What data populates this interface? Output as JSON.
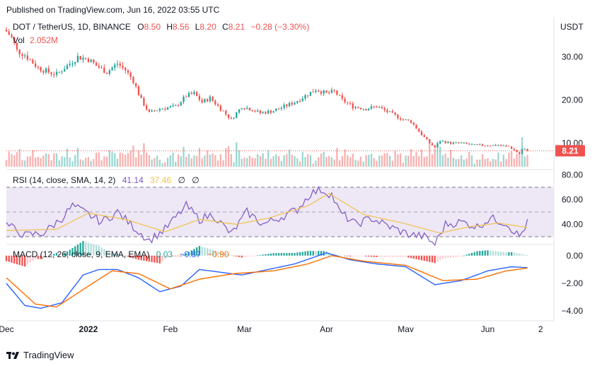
{
  "published": "Published on TradingView.com, Jun 16, 2022 03:55 UTC",
  "footer_brand": "TradingView",
  "legend": {
    "symbol": "DOT / TetherUS, 1D, BINANCE",
    "o_label": "O",
    "o": "8.50",
    "h_label": "H",
    "h": "8.56",
    "l_label": "L",
    "l": "8.20",
    "c_label": "C",
    "c": "8.21",
    "change": "−0.28 (−3.30%)",
    "vol_label": "Vol",
    "vol": "2.052M"
  },
  "rsi_legend": {
    "label": "RSI (14, close, SMA, 14, 2)",
    "rsi": "41.14",
    "sma": "37.46",
    "x1": "∅",
    "x2": "∅"
  },
  "macd_legend": {
    "label": "MACD (12, 26, close, 9, EMA, EMA)",
    "hist": "0.03",
    "macd": "−0.87",
    "signal": "−0.90"
  },
  "currency": "USDT",
  "last_price_label": "8.21",
  "colors": {
    "up": "#26a69a",
    "down": "#ef5350",
    "rsi": "#7e57c2",
    "rsi_sma": "#f0c24a",
    "macd": "#2962ff",
    "signal": "#ff6d00",
    "rsi_band": "#ede7f6"
  },
  "chart_data": [
    {
      "type": "candlestick",
      "title": "DOT / TetherUS, 1D, BINANCE",
      "ylabel": "USDT",
      "y_ticks": [
        "30.00",
        "20.00",
        "10.00"
      ],
      "ylim": [
        4.5,
        38
      ],
      "x_ticks": [
        "Dec",
        "2022",
        "Feb",
        "Mar",
        "Apr",
        "May",
        "Jun",
        "2"
      ],
      "x_tick_dates": [
        "2021-12-01",
        "2022-01-01",
        "2022-02-01",
        "2022-03-01",
        "2022-04-01",
        "2022-05-01",
        "2022-06-01",
        "2022-06-21"
      ],
      "x_start": "2021-12-01",
      "x_end": "2022-06-22",
      "close_anchors": [
        [
          "2021-12-01",
          36.0
        ],
        [
          "2021-12-03",
          34.5
        ],
        [
          "2021-12-05",
          31.5
        ],
        [
          "2021-12-08",
          30.5
        ],
        [
          "2021-12-13",
          27.5
        ],
        [
          "2021-12-17",
          26.5
        ],
        [
          "2021-12-20",
          26.0
        ],
        [
          "2021-12-24",
          28.0
        ],
        [
          "2021-12-28",
          30.0
        ],
        [
          "2022-01-01",
          29.5
        ],
        [
          "2022-01-04",
          28.0
        ],
        [
          "2022-01-08",
          26.5
        ],
        [
          "2022-01-12",
          28.5
        ],
        [
          "2022-01-15",
          27.0
        ],
        [
          "2022-01-18",
          24.5
        ],
        [
          "2022-01-21",
          20.0
        ],
        [
          "2022-01-24",
          17.0
        ],
        [
          "2022-01-28",
          18.0
        ],
        [
          "2022-02-03",
          18.5
        ],
        [
          "2022-02-07",
          21.0
        ],
        [
          "2022-02-10",
          21.5
        ],
        [
          "2022-02-13",
          19.5
        ],
        [
          "2022-02-16",
          20.5
        ],
        [
          "2022-02-20",
          18.0
        ],
        [
          "2022-02-24",
          15.5
        ],
        [
          "2022-02-28",
          18.5
        ],
        [
          "2022-03-03",
          18.0
        ],
        [
          "2022-03-07",
          17.0
        ],
        [
          "2022-03-12",
          17.5
        ],
        [
          "2022-03-16",
          18.5
        ],
        [
          "2022-03-20",
          19.5
        ],
        [
          "2022-03-24",
          21.0
        ],
        [
          "2022-03-28",
          22.5
        ],
        [
          "2022-04-01",
          21.5
        ],
        [
          "2022-04-04",
          22.0
        ],
        [
          "2022-04-07",
          20.0
        ],
        [
          "2022-04-11",
          18.5
        ],
        [
          "2022-04-16",
          18.0
        ],
        [
          "2022-04-20",
          18.5
        ],
        [
          "2022-04-25",
          17.0
        ],
        [
          "2022-04-30",
          15.5
        ],
        [
          "2022-05-03",
          15.0
        ],
        [
          "2022-05-07",
          12.0
        ],
        [
          "2022-05-10",
          10.0
        ],
        [
          "2022-05-12",
          9.0
        ],
        [
          "2022-05-14",
          10.5
        ],
        [
          "2022-05-18",
          10.0
        ],
        [
          "2022-05-22",
          10.0
        ],
        [
          "2022-05-27",
          9.5
        ],
        [
          "2022-06-01",
          9.5
        ],
        [
          "2022-06-05",
          9.5
        ],
        [
          "2022-06-09",
          9.2
        ],
        [
          "2022-06-13",
          7.5
        ],
        [
          "2022-06-14",
          8.5
        ],
        [
          "2022-06-15",
          8.5
        ],
        [
          "2022-06-16",
          8.21
        ]
      ],
      "last_close": 8.21
    },
    {
      "type": "line",
      "title": "RSI (14, close, SMA, 14, 2)",
      "y_ticks": [
        "80.00",
        "60.00",
        "40.00"
      ],
      "ylim": [
        26,
        82
      ],
      "bands": [
        30,
        50,
        70
      ],
      "series": [
        {
          "name": "RSI",
          "anchors": [
            [
              "2021-12-01",
              40
            ],
            [
              "2021-12-08",
              31
            ],
            [
              "2021-12-15",
              33
            ],
            [
              "2021-12-22",
              45
            ],
            [
              "2021-12-26",
              55
            ],
            [
              "2022-01-01",
              48
            ],
            [
              "2022-01-06",
              42
            ],
            [
              "2022-01-12",
              50
            ],
            [
              "2022-01-18",
              38
            ],
            [
              "2022-01-24",
              27
            ],
            [
              "2022-01-30",
              36
            ],
            [
              "2022-02-07",
              55
            ],
            [
              "2022-02-12",
              44
            ],
            [
              "2022-02-17",
              48
            ],
            [
              "2022-02-24",
              32
            ],
            [
              "2022-03-02",
              50
            ],
            [
              "2022-03-08",
              40
            ],
            [
              "2022-03-15",
              46
            ],
            [
              "2022-03-21",
              52
            ],
            [
              "2022-03-26",
              65
            ],
            [
              "2022-03-30",
              68
            ],
            [
              "2022-04-03",
              64
            ],
            [
              "2022-04-06",
              50
            ],
            [
              "2022-04-12",
              40
            ],
            [
              "2022-04-18",
              45
            ],
            [
              "2022-04-25",
              38
            ],
            [
              "2022-05-02",
              32
            ],
            [
              "2022-05-08",
              30
            ],
            [
              "2022-05-12",
              24
            ],
            [
              "2022-05-16",
              40
            ],
            [
              "2022-05-22",
              42
            ],
            [
              "2022-05-28",
              38
            ],
            [
              "2022-06-02",
              45
            ],
            [
              "2022-06-08",
              41
            ],
            [
              "2022-06-13",
              30
            ],
            [
              "2022-06-16",
              41.14
            ]
          ]
        },
        {
          "name": "SMA",
          "anchors": [
            [
              "2021-12-01",
              35
            ],
            [
              "2021-12-20",
              36
            ],
            [
              "2022-01-01",
              49
            ],
            [
              "2022-01-15",
              44
            ],
            [
              "2022-01-30",
              34
            ],
            [
              "2022-02-12",
              44
            ],
            [
              "2022-02-26",
              40
            ],
            [
              "2022-03-10",
              45
            ],
            [
              "2022-03-25",
              55
            ],
            [
              "2022-04-02",
              65
            ],
            [
              "2022-04-15",
              48
            ],
            [
              "2022-04-30",
              41
            ],
            [
              "2022-05-14",
              33
            ],
            [
              "2022-05-25",
              38
            ],
            [
              "2022-06-05",
              41
            ],
            [
              "2022-06-16",
              37.46
            ]
          ]
        }
      ]
    },
    {
      "type": "line",
      "title": "MACD (12, 26, close, 9, EMA, EMA)",
      "y_ticks": [
        "0.00",
        "−2.00",
        "−4.00"
      ],
      "ylim": [
        -4.6,
        0.6
      ],
      "series": [
        {
          "name": "MACD",
          "anchors": [
            [
              "2021-12-01",
              -2.0
            ],
            [
              "2021-12-08",
              -3.6
            ],
            [
              "2021-12-14",
              -3.8
            ],
            [
              "2021-12-22",
              -3.4
            ],
            [
              "2021-12-30",
              -1.4
            ],
            [
              "2022-01-05",
              -1.0
            ],
            [
              "2022-01-12",
              -1.0
            ],
            [
              "2022-01-20",
              -1.6
            ],
            [
              "2022-01-28",
              -2.6
            ],
            [
              "2022-02-05",
              -2.2
            ],
            [
              "2022-02-12",
              -1.0
            ],
            [
              "2022-02-20",
              -1.2
            ],
            [
              "2022-02-28",
              -1.4
            ],
            [
              "2022-03-10",
              -1.0
            ],
            [
              "2022-03-20",
              -0.6
            ],
            [
              "2022-04-01",
              0.2
            ],
            [
              "2022-04-10",
              -0.3
            ],
            [
              "2022-04-20",
              -0.6
            ],
            [
              "2022-05-01",
              -0.8
            ],
            [
              "2022-05-12",
              -2.1
            ],
            [
              "2022-05-22",
              -1.8
            ],
            [
              "2022-06-01",
              -1.1
            ],
            [
              "2022-06-10",
              -0.8
            ],
            [
              "2022-06-16",
              -0.87
            ]
          ]
        },
        {
          "name": "Signal",
          "anchors": [
            [
              "2021-12-01",
              -1.6
            ],
            [
              "2021-12-12",
              -3.5
            ],
            [
              "2021-12-20",
              -3.7
            ],
            [
              "2022-01-01",
              -2.2
            ],
            [
              "2022-01-10",
              -1.1
            ],
            [
              "2022-01-20",
              -1.3
            ],
            [
              "2022-02-01",
              -2.4
            ],
            [
              "2022-02-12",
              -1.7
            ],
            [
              "2022-02-25",
              -1.3
            ],
            [
              "2022-03-12",
              -1.1
            ],
            [
              "2022-03-25",
              -0.6
            ],
            [
              "2022-04-03",
              0.0
            ],
            [
              "2022-04-15",
              -0.4
            ],
            [
              "2022-05-01",
              -0.7
            ],
            [
              "2022-05-15",
              -1.8
            ],
            [
              "2022-05-28",
              -1.7
            ],
            [
              "2022-06-08",
              -1.1
            ],
            [
              "2022-06-16",
              -0.9
            ]
          ]
        }
      ]
    }
  ]
}
